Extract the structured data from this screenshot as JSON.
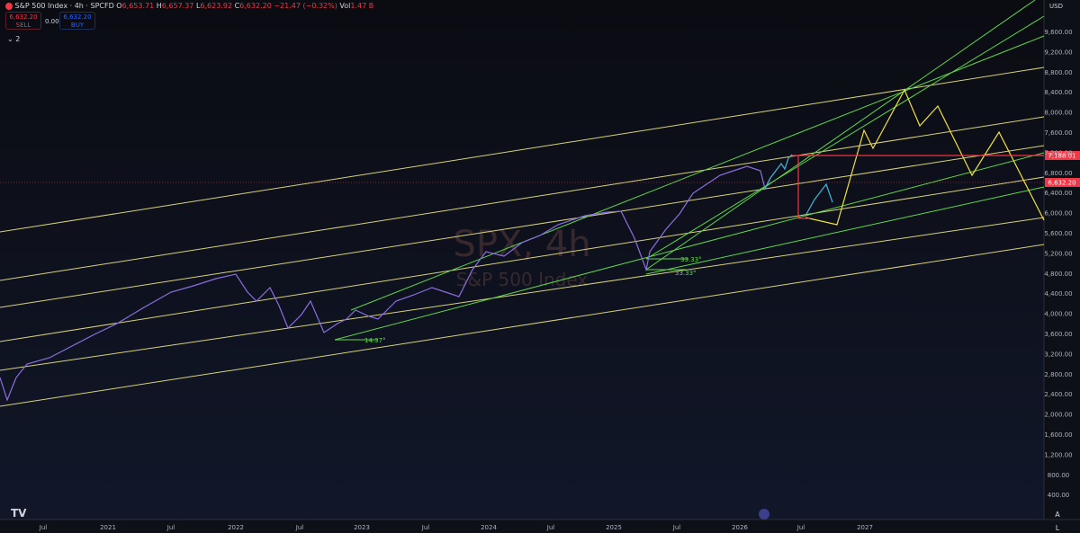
{
  "header": {
    "symbol": "S&P 500 Index · 4h · SPCFD",
    "ohlc": [
      {
        "label": "O",
        "value": "6,653.71"
      },
      {
        "label": "H",
        "value": "6,657.37"
      },
      {
        "label": "L",
        "value": "6,623.92"
      },
      {
        "label": "C",
        "value": "6,632.20"
      }
    ],
    "change": "−21.47 (−0.32%)",
    "volume_label": "Vol",
    "volume": "1.47 B"
  },
  "trade": {
    "sell_price": "6,632.20",
    "sell": "SELL",
    "spread": "0.00",
    "buy_price": "6,632.20",
    "buy": "BUY"
  },
  "indicators_count": "2",
  "watermark": {
    "ticker": "SPX, 4h",
    "name": "S&P 500 Index"
  },
  "currency": "USD",
  "price_axis": [
    "9,600.00",
    "9,200.00",
    "8,800.00",
    "8,400.00",
    "8,000.00",
    "7,600.00",
    "7,200.00",
    "6,800.00",
    "6,400.00",
    "6,000.00",
    "5,600.00",
    "5,200.00",
    "4,800.00",
    "4,400.00",
    "4,000.00",
    "3,600.00",
    "3,200.00",
    "2,800.00",
    "2,400.00",
    "2,000.00",
    "1,600.00",
    "1,200.00",
    "800.00",
    "400.00"
  ],
  "price_badges": {
    "target": "7,188.01",
    "last": "6,632.20"
  },
  "time_axis": [
    "Jul",
    "2021",
    "Jul",
    "2022",
    "Jul",
    "2023",
    "Jul",
    "2024",
    "Jul",
    "2025",
    "Jul",
    "2026",
    "Jul",
    "2027"
  ],
  "annotations": [
    "14.37°",
    "33.33°",
    "33.33°"
  ],
  "axis_controls": [
    "A",
    "L"
  ]
}
